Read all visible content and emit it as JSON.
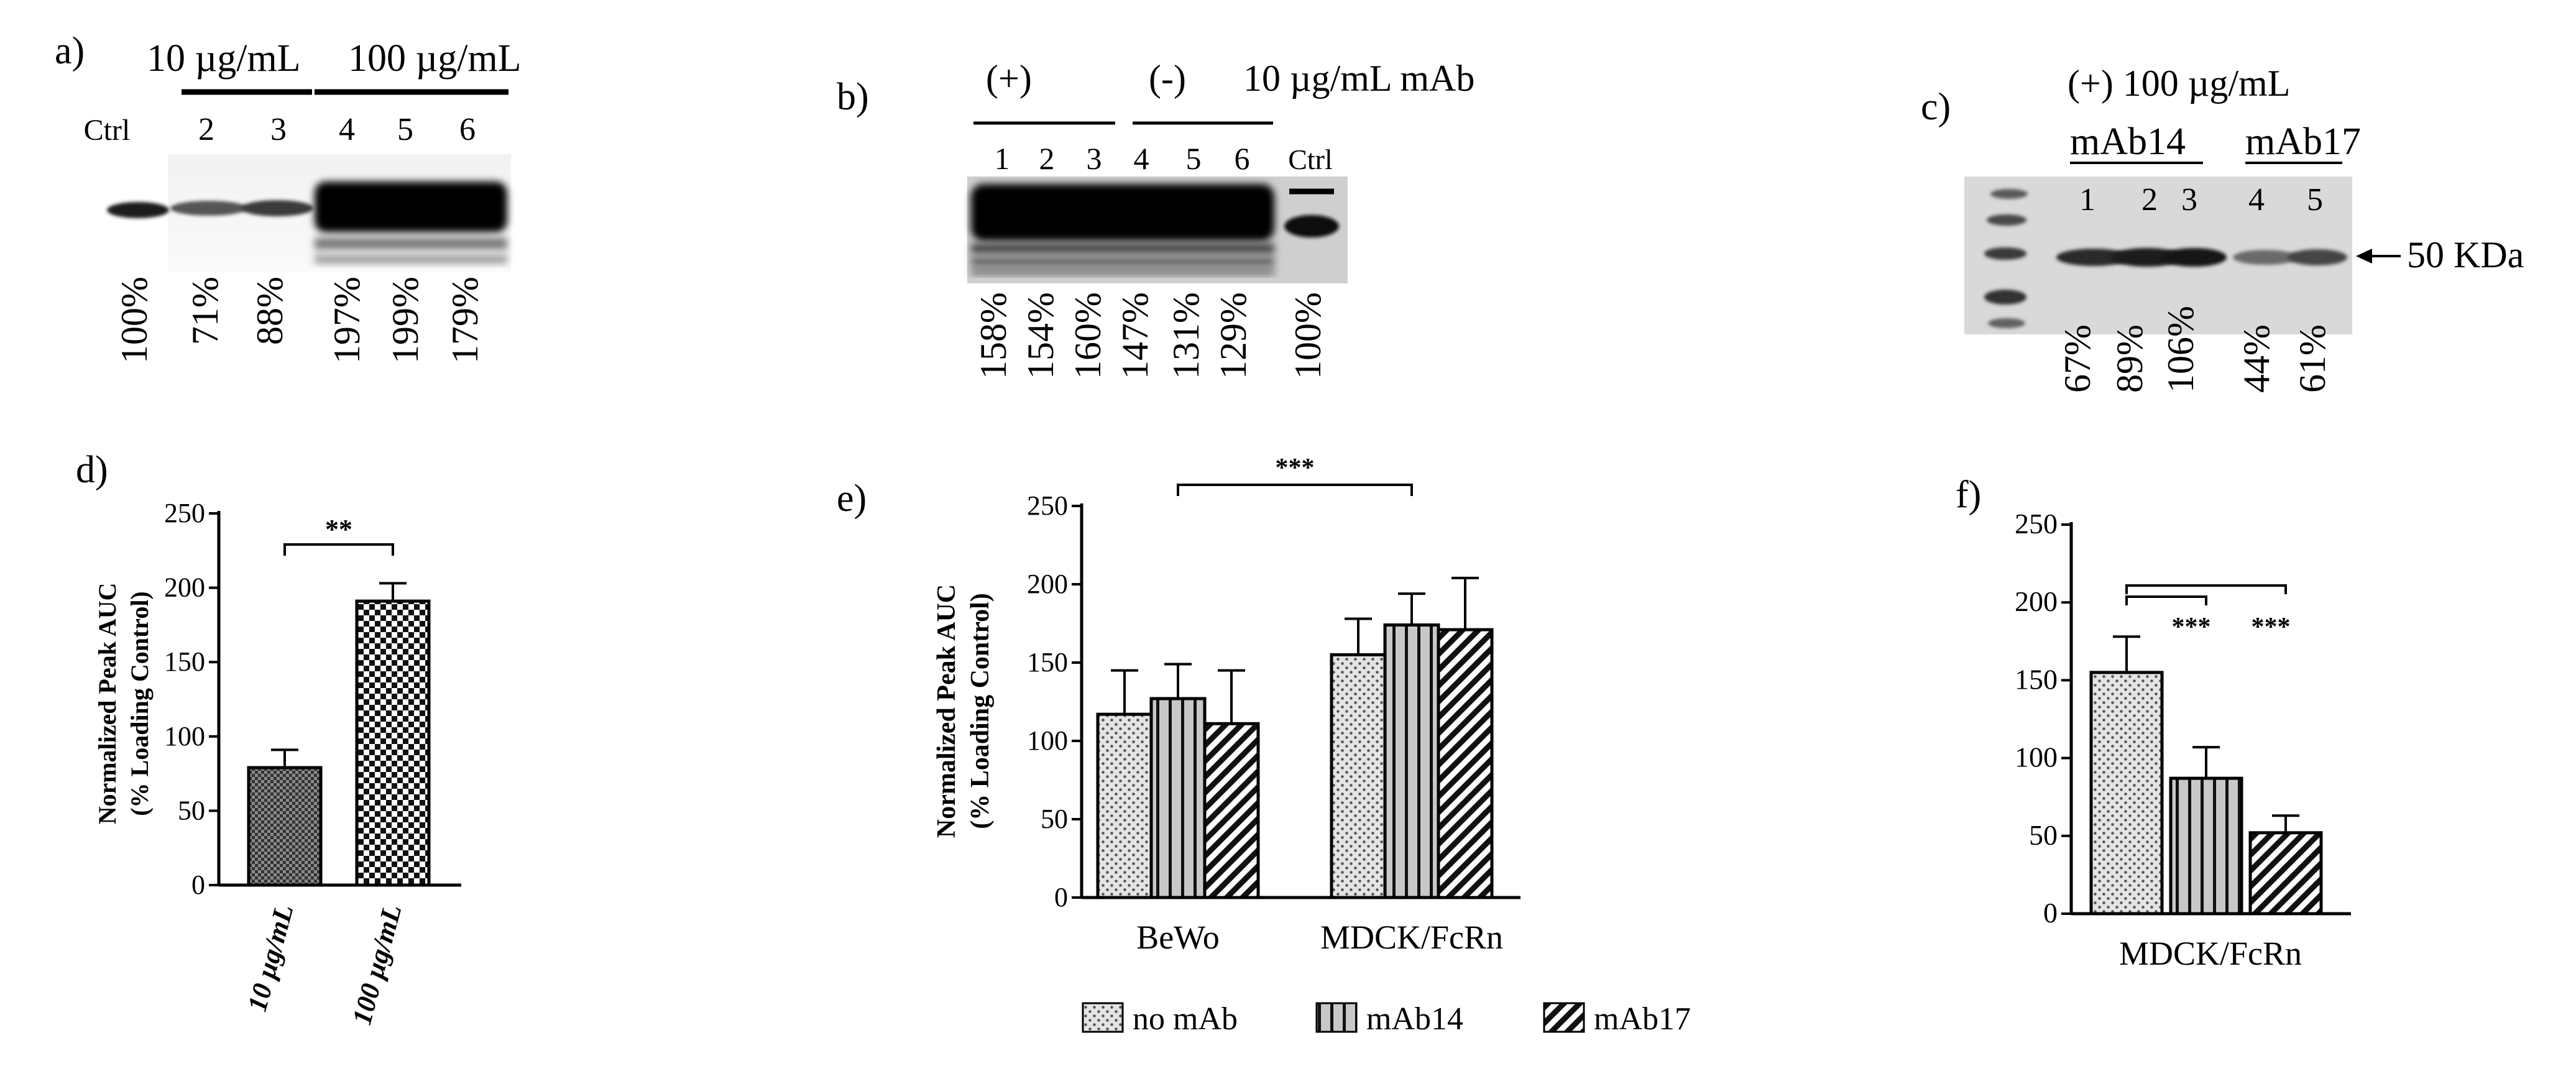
{
  "figure": {
    "panels": {
      "a": {
        "label": "a)",
        "group_labels": [
          "10 µg/mL",
          "100 µg/mL"
        ],
        "ctrl_label": "Ctrl",
        "lane_numbers": [
          "2",
          "3",
          "4",
          "5",
          "6"
        ],
        "percentages": [
          "100%",
          "71%",
          "88%",
          "197%",
          "199%",
          "179%"
        ]
      },
      "b": {
        "label": "b)",
        "group_labels": [
          "(+)",
          "(-)"
        ],
        "condition_label": "10 µg/mL mAb",
        "ctrl_label": "Ctrl",
        "lane_numbers": [
          "1",
          "2",
          "3",
          "4",
          "5",
          "6"
        ],
        "percentages": [
          "158%",
          "154%",
          "160%",
          "147%",
          "131%",
          "129%",
          "100%"
        ]
      },
      "c": {
        "label": "c)",
        "condition_label": "(+) 100 µg/mL",
        "group_labels": [
          "mAb14",
          "mAb17"
        ],
        "lane_numbers": [
          "1",
          "2",
          "3",
          "4",
          "5"
        ],
        "marker_label": "50 KDa",
        "percentages": [
          "67%",
          "89%",
          "106%",
          "44%",
          "61%"
        ]
      },
      "d": {
        "label": "d)",
        "ylabel_line1": "Normalized Peak AUC",
        "ylabel_line2": "(% Loading Control)",
        "significance": "**"
      },
      "e": {
        "label": "e)",
        "ylabel_line1": "Normalized Peak AUC",
        "ylabel_line2": "(% Loading Control)",
        "significance": "***"
      },
      "f": {
        "label": "f)",
        "significance": [
          "***",
          "***"
        ]
      }
    },
    "legend": {
      "items": [
        {
          "label": "no mAb",
          "pattern": "dots"
        },
        {
          "label": "mAb14",
          "pattern": "vertical-lines"
        },
        {
          "label": "mAb17",
          "pattern": "diagonal-lines"
        }
      ]
    },
    "colors": {
      "bar_gray": "#bdbdbd",
      "ink": "#000000"
    }
  },
  "chart_data": [
    {
      "panel": "d",
      "type": "bar",
      "categories": [
        "10 µg/mL",
        "100 µg/mL"
      ],
      "values": [
        79,
        191
      ],
      "errors": [
        12,
        12
      ],
      "patterns": [
        "dense-check",
        "check"
      ],
      "ylim": [
        0,
        250
      ],
      "yticks": [
        0,
        50,
        100,
        150,
        200,
        250
      ]
    },
    {
      "panel": "e",
      "type": "bar",
      "categories": [
        "BeWo",
        "MDCK/FcRn"
      ],
      "series": [
        {
          "name": "no mAb",
          "values": [
            117,
            155
          ],
          "errors": [
            28,
            23
          ]
        },
        {
          "name": "mAb14",
          "values": [
            127,
            174
          ],
          "errors": [
            22,
            20
          ]
        },
        {
          "name": "mAb17",
          "values": [
            111,
            171
          ],
          "errors": [
            34,
            33
          ]
        }
      ],
      "ylim": [
        0,
        250
      ],
      "yticks": [
        0,
        50,
        100,
        150,
        200,
        250
      ]
    },
    {
      "panel": "f",
      "type": "bar",
      "categories": [
        "MDCK/FcRn"
      ],
      "series": [
        {
          "name": "no mAb",
          "values": [
            155
          ],
          "errors": [
            23
          ]
        },
        {
          "name": "mAb14",
          "values": [
            87
          ],
          "errors": [
            20
          ]
        },
        {
          "name": "mAb17",
          "values": [
            52
          ],
          "errors": [
            11
          ]
        }
      ],
      "ylim": [
        0,
        250
      ],
      "yticks": [
        0,
        50,
        100,
        150,
        200,
        250
      ]
    }
  ]
}
